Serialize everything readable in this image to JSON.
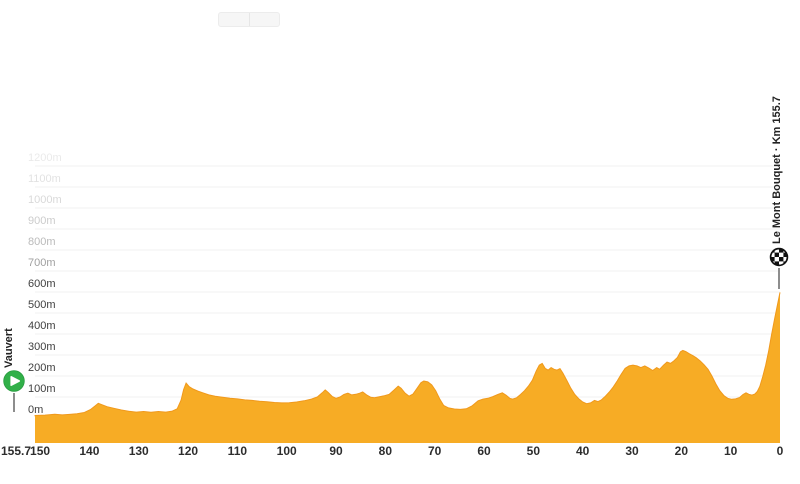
{
  "header": {
    "view_toggle": {
      "segments": [
        {
          "label": ""
        },
        {
          "label": ""
        }
      ]
    }
  },
  "start_marker": {
    "label": "Vauvert",
    "icon": "play-icon"
  },
  "finish_marker": {
    "label": "Le Mont Bouquet · Km 155.7",
    "icon": "checkered-flag-icon"
  },
  "colors": {
    "profile_fill": "#F7AC25",
    "profile_edge": "#F0991C",
    "start_green": "#31B049",
    "grid": "#F0F0F0",
    "axis_text": "#2D2D2D"
  },
  "chart_data": {
    "type": "area",
    "title": "",
    "xlabel": "",
    "ylabel": "",
    "x_axis": {
      "reversed": true,
      "range_km": [
        155.7,
        0
      ],
      "tick_labels": [
        "155.7",
        "150",
        "140",
        "130",
        "120",
        "110",
        "100",
        "90",
        "80",
        "70",
        "60",
        "50",
        "40",
        "30",
        "20",
        "10",
        "0"
      ],
      "tick_km": [
        155.7,
        150,
        140,
        130,
        120,
        110,
        100,
        90,
        80,
        70,
        60,
        50,
        40,
        30,
        20,
        10,
        0
      ]
    },
    "y_axis": {
      "range_m": [
        0,
        1200
      ],
      "tick_labels": [
        "0m",
        "100m",
        "200m",
        "300m",
        "400m",
        "500m",
        "600m",
        "700m",
        "800m",
        "900m",
        "1000m",
        "1100m",
        "1200m"
      ],
      "tick_m": [
        0,
        100,
        200,
        300,
        400,
        500,
        600,
        700,
        800,
        900,
        1000,
        1100,
        1200
      ]
    },
    "grid": true,
    "legend": "none",
    "start": {
      "name": "Vauvert",
      "km_to_go": 155.7,
      "elevation_m": 8
    },
    "finish": {
      "name": "Le Mont Bouquet",
      "km_to_go": 0,
      "elevation_m": 598
    },
    "points_km_elev": [
      [
        155.7,
        8
      ],
      [
        153,
        10
      ],
      [
        151,
        12
      ],
      [
        149,
        14
      ],
      [
        147,
        18
      ],
      [
        145.5,
        15
      ],
      [
        144,
        17
      ],
      [
        142.5,
        20
      ],
      [
        141,
        26
      ],
      [
        139.8,
        40
      ],
      [
        138.8,
        58
      ],
      [
        138.2,
        70
      ],
      [
        137.4,
        63
      ],
      [
        136.4,
        54
      ],
      [
        135,
        46
      ],
      [
        133.5,
        38
      ],
      [
        132,
        32
      ],
      [
        130.5,
        28
      ],
      [
        129,
        31
      ],
      [
        127.5,
        27
      ],
      [
        126,
        31
      ],
      [
        124.5,
        28
      ],
      [
        123.2,
        33
      ],
      [
        122.2,
        44
      ],
      [
        121.4,
        85
      ],
      [
        120.9,
        135
      ],
      [
        120.4,
        166
      ],
      [
        119.8,
        150
      ],
      [
        119,
        138
      ],
      [
        118,
        128
      ],
      [
        117,
        120
      ],
      [
        115.8,
        110
      ],
      [
        114.5,
        104
      ],
      [
        113,
        99
      ],
      [
        111.5,
        94
      ],
      [
        110,
        91
      ],
      [
        108.5,
        86
      ],
      [
        107,
        84
      ],
      [
        105.5,
        80
      ],
      [
        104,
        77
      ],
      [
        102.5,
        74
      ],
      [
        101,
        72
      ],
      [
        99.5,
        73
      ],
      [
        98,
        76
      ],
      [
        96.5,
        82
      ],
      [
        95,
        90
      ],
      [
        93.8,
        100
      ],
      [
        92.8,
        120
      ],
      [
        92.2,
        134
      ],
      [
        91.6,
        122
      ],
      [
        90.8,
        103
      ],
      [
        90,
        94
      ],
      [
        89.2,
        100
      ],
      [
        88.4,
        112
      ],
      [
        87.6,
        118
      ],
      [
        86.8,
        110
      ],
      [
        86,
        113
      ],
      [
        85.2,
        118
      ],
      [
        84.6,
        124
      ],
      [
        83.8,
        110
      ],
      [
        83,
        99
      ],
      [
        82.2,
        96
      ],
      [
        81.2,
        101
      ],
      [
        80.2,
        106
      ],
      [
        79.2,
        113
      ],
      [
        78.2,
        134
      ],
      [
        77.4,
        152
      ],
      [
        76.8,
        142
      ],
      [
        76,
        118
      ],
      [
        75.2,
        104
      ],
      [
        74.4,
        114
      ],
      [
        73.6,
        140
      ],
      [
        72.8,
        168
      ],
      [
        72.2,
        176
      ],
      [
        71.4,
        172
      ],
      [
        70.6,
        158
      ],
      [
        69.8,
        130
      ],
      [
        69,
        92
      ],
      [
        68.2,
        60
      ],
      [
        67.2,
        48
      ],
      [
        66,
        43
      ],
      [
        64.8,
        41
      ],
      [
        63.6,
        44
      ],
      [
        62.4,
        58
      ],
      [
        61.2,
        82
      ],
      [
        60.2,
        90
      ],
      [
        59.2,
        94
      ],
      [
        58.2,
        102
      ],
      [
        57.2,
        112
      ],
      [
        56.3,
        120
      ],
      [
        55.5,
        108
      ],
      [
        54.8,
        94
      ],
      [
        54.2,
        90
      ],
      [
        53.4,
        96
      ],
      [
        52.6,
        112
      ],
      [
        51.8,
        130
      ],
      [
        51,
        152
      ],
      [
        50.2,
        180
      ],
      [
        49.4,
        225
      ],
      [
        48.8,
        252
      ],
      [
        48.2,
        260
      ],
      [
        47.6,
        236
      ],
      [
        47,
        228
      ],
      [
        46.4,
        240
      ],
      [
        45.8,
        232
      ],
      [
        45.2,
        228
      ],
      [
        44.6,
        235
      ],
      [
        44,
        214
      ],
      [
        43.2,
        178
      ],
      [
        42.4,
        142
      ],
      [
        41.6,
        112
      ],
      [
        40.8,
        92
      ],
      [
        40,
        76
      ],
      [
        39.2,
        68
      ],
      [
        38.4,
        72
      ],
      [
        37.6,
        84
      ],
      [
        36.9,
        78
      ],
      [
        36.2,
        86
      ],
      [
        35.4,
        104
      ],
      [
        34.6,
        124
      ],
      [
        33.8,
        148
      ],
      [
        33,
        176
      ],
      [
        32.2,
        208
      ],
      [
        31.4,
        236
      ],
      [
        30.6,
        248
      ],
      [
        29.8,
        252
      ],
      [
        29,
        248
      ],
      [
        28.2,
        240
      ],
      [
        27.4,
        248
      ],
      [
        26.6,
        238
      ],
      [
        25.8,
        226
      ],
      [
        25,
        240
      ],
      [
        24.4,
        232
      ],
      [
        23.6,
        252
      ],
      [
        22.9,
        266
      ],
      [
        22.2,
        260
      ],
      [
        21.5,
        272
      ],
      [
        20.8,
        288
      ],
      [
        20.2,
        315
      ],
      [
        19.7,
        322
      ],
      [
        19.1,
        316
      ],
      [
        18.4,
        306
      ],
      [
        17.7,
        297
      ],
      [
        17,
        287
      ],
      [
        16.2,
        272
      ],
      [
        15.4,
        254
      ],
      [
        14.6,
        232
      ],
      [
        13.8,
        200
      ],
      [
        13,
        162
      ],
      [
        12.2,
        130
      ],
      [
        11.4,
        107
      ],
      [
        10.6,
        94
      ],
      [
        9.8,
        89
      ],
      [
        9,
        91
      ],
      [
        8.2,
        97
      ],
      [
        7.5,
        112
      ],
      [
        6.9,
        120
      ],
      [
        6.3,
        113
      ],
      [
        5.7,
        109
      ],
      [
        5.1,
        114
      ],
      [
        4.6,
        126
      ],
      [
        4.1,
        150
      ],
      [
        3.5,
        196
      ],
      [
        2.9,
        252
      ],
      [
        2.3,
        320
      ],
      [
        1.7,
        398
      ],
      [
        1.1,
        472
      ],
      [
        0.5,
        540
      ],
      [
        0,
        598
      ]
    ]
  }
}
